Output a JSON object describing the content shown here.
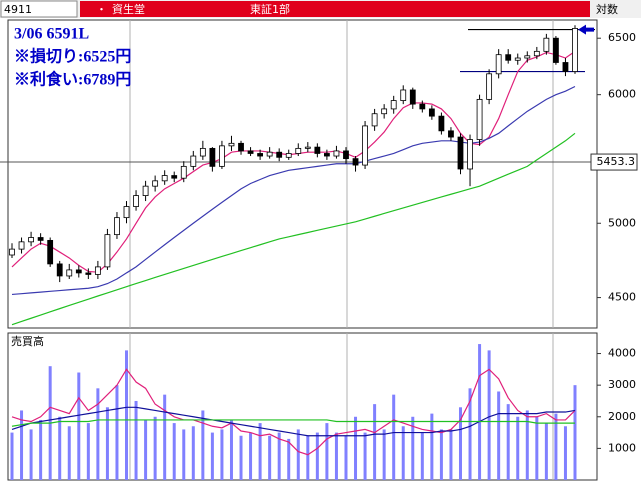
{
  "header": {
    "code": "4911",
    "marker": "・",
    "name": "資生堂",
    "market": "東証1部",
    "scale_label": "対数"
  },
  "chart_data": [
    {
      "type": "candlestick",
      "log": true,
      "ylim": [
        4310,
        6670
      ],
      "yticks": [
        4500,
        5000,
        6000,
        6500
      ],
      "annotations": [
        "3/06 6591L",
        "※損切り:6525円",
        "※利食い:6789円"
      ],
      "current_price": 5453.3,
      "levels": [
        6580,
        6200
      ],
      "level_color": "#000080",
      "open": [
        4780,
        4820,
        4870,
        4900,
        4880,
        4720,
        4640,
        4680,
        4660,
        4650,
        4700,
        4920,
        5040,
        5120,
        5200,
        5270,
        5310,
        5350,
        5330,
        5420,
        5500,
        5560,
        5420,
        5580,
        5600,
        5540,
        5520,
        5500,
        5530,
        5490,
        5520,
        5560,
        5570,
        5520,
        5500,
        5540,
        5480,
        5430,
        5740,
        5840,
        5880,
        5950,
        6040,
        5920,
        5880,
        5820,
        5700,
        5650,
        5400,
        5630,
        5960,
        6180,
        6350,
        6300,
        6320,
        6340,
        6380,
        6500,
        6280,
        6200
      ],
      "high": [
        4860,
        4900,
        4940,
        4930,
        4900,
        4740,
        4720,
        4710,
        4690,
        4740,
        4960,
        5080,
        5160,
        5240,
        5310,
        5350,
        5390,
        5380,
        5460,
        5540,
        5620,
        5570,
        5620,
        5660,
        5620,
        5570,
        5550,
        5570,
        5560,
        5550,
        5600,
        5610,
        5600,
        5550,
        5580,
        5570,
        5500,
        5780,
        5880,
        5920,
        5990,
        6080,
        6060,
        5950,
        5910,
        5850,
        5730,
        5680,
        5670,
        6000,
        6220,
        6400,
        6400,
        6360,
        6380,
        6420,
        6540,
        6520,
        6320,
        6620
      ],
      "low": [
        4760,
        4790,
        4840,
        4850,
        4700,
        4600,
        4620,
        4630,
        4620,
        4620,
        4680,
        4890,
        5000,
        5090,
        5160,
        5230,
        5280,
        5300,
        5300,
        5390,
        5470,
        5380,
        5400,
        5540,
        5510,
        5500,
        5470,
        5480,
        5460,
        5470,
        5500,
        5530,
        5490,
        5470,
        5480,
        5440,
        5380,
        5400,
        5700,
        5800,
        5840,
        5920,
        5880,
        5850,
        5790,
        5670,
        5620,
        5360,
        5270,
        5580,
        5920,
        6140,
        6270,
        6260,
        6280,
        6310,
        6350,
        6260,
        6160,
        6180
      ],
      "close": [
        4820,
        4870,
        4900,
        4880,
        4720,
        4640,
        4680,
        4660,
        4650,
        4700,
        4920,
        5040,
        5120,
        5200,
        5270,
        5310,
        5350,
        5330,
        5420,
        5500,
        5560,
        5420,
        5580,
        5600,
        5540,
        5520,
        5500,
        5530,
        5490,
        5520,
        5560,
        5570,
        5520,
        5500,
        5540,
        5480,
        5430,
        5740,
        5840,
        5880,
        5950,
        6040,
        5920,
        5880,
        5820,
        5700,
        5650,
        5400,
        5630,
        5960,
        6180,
        6350,
        6300,
        6320,
        6340,
        6380,
        6500,
        6280,
        6200,
        6591
      ],
      "overlays": [
        {
          "color": "#e0207a",
          "values": [
            4700,
            4760,
            4820,
            4860,
            4840,
            4800,
            4760,
            4710,
            4670,
            4665,
            4720,
            4800,
            4890,
            5000,
            5110,
            5190,
            5250,
            5290,
            5330,
            5380,
            5430,
            5450,
            5480,
            5530,
            5540,
            5540,
            5540,
            5530,
            5520,
            5510,
            5520,
            5530,
            5530,
            5530,
            5540,
            5520,
            5490,
            5540,
            5610,
            5690,
            5800,
            5890,
            5930,
            5930,
            5920,
            5880,
            5800,
            5680,
            5600,
            5590,
            5650,
            5800,
            6000,
            6200,
            6300,
            6330,
            6370,
            6350,
            6320,
            6380
          ]
        },
        {
          "color": "#3a3ab0",
          "values": [
            4520,
            4525,
            4530,
            4535,
            4540,
            4545,
            4550,
            4555,
            4560,
            4570,
            4590,
            4620,
            4660,
            4700,
            4750,
            4800,
            4850,
            4900,
            4950,
            5000,
            5050,
            5100,
            5150,
            5200,
            5250,
            5290,
            5320,
            5350,
            5370,
            5390,
            5400,
            5410,
            5420,
            5430,
            5440,
            5440,
            5440,
            5460,
            5480,
            5500,
            5520,
            5550,
            5580,
            5600,
            5610,
            5620,
            5620,
            5610,
            5600,
            5610,
            5640,
            5680,
            5740,
            5800,
            5860,
            5910,
            5960,
            6000,
            6030,
            6070
          ]
        },
        {
          "color": "#22c022",
          "values": [
            4330,
            4350,
            4370,
            4390,
            4410,
            4430,
            4450,
            4470,
            4490,
            4510,
            4530,
            4550,
            4570,
            4590,
            4610,
            4630,
            4650,
            4670,
            4690,
            4710,
            4730,
            4750,
            4770,
            4790,
            4810,
            4830,
            4850,
            4870,
            4890,
            4905,
            4920,
            4935,
            4950,
            4965,
            4980,
            4995,
            5010,
            5030,
            5050,
            5070,
            5090,
            5110,
            5130,
            5150,
            5170,
            5190,
            5210,
            5230,
            5250,
            5270,
            5300,
            5330,
            5360,
            5390,
            5420,
            5470,
            5520,
            5570,
            5620,
            5680
          ]
        }
      ]
    },
    {
      "type": "bar",
      "title": "売買高",
      "color": "#8080ff",
      "ylim": [
        0,
        4650
      ],
      "yticks": [
        1000,
        2000,
        3000,
        4000
      ],
      "values": [
        1500,
        2200,
        1600,
        1900,
        3600,
        2000,
        1700,
        3400,
        1800,
        2900,
        2300,
        3000,
        4100,
        2500,
        1900,
        2000,
        2700,
        1800,
        1600,
        1700,
        2200,
        1500,
        1600,
        1900,
        1400,
        1500,
        1800,
        1400,
        1500,
        1300,
        1600,
        1400,
        1500,
        1800,
        1500,
        1400,
        2000,
        1500,
        2400,
        1600,
        2700,
        1700,
        2000,
        1500,
        2100,
        1600,
        1600,
        2300,
        2900,
        4300,
        4100,
        2800,
        2400,
        2000,
        2200,
        2000,
        1800,
        2100,
        1700,
        3000
      ],
      "overlays": [
        {
          "color": "#e0207a",
          "values": [
            2000,
            1900,
            1850,
            2000,
            2300,
            2200,
            2100,
            2600,
            2200,
            2400,
            2700,
            3000,
            3500,
            3100,
            2900,
            2400,
            2200,
            2000,
            1900,
            1900,
            1800,
            1700,
            1650,
            1800,
            1550,
            1500,
            1400,
            1450,
            1300,
            1200,
            900,
            800,
            1000,
            1300,
            1450,
            1500,
            1550,
            1600,
            1500,
            1700,
            1900,
            1800,
            1700,
            1600,
            1550,
            1500,
            1600,
            1900,
            2500,
            3300,
            3500,
            3200,
            2600,
            2200,
            2000,
            2000,
            2100,
            1900,
            1900,
            2200
          ]
        },
        {
          "color": "#10109a",
          "values": [
            1600,
            1700,
            1800,
            1850,
            1900,
            1950,
            2000,
            2050,
            2100,
            2150,
            2200,
            2250,
            2300,
            2300,
            2250,
            2200,
            2150,
            2100,
            2050,
            2000,
            1950,
            1900,
            1850,
            1800,
            1750,
            1700,
            1650,
            1600,
            1550,
            1500,
            1450,
            1400,
            1400,
            1400,
            1400,
            1400,
            1400,
            1400,
            1450,
            1450,
            1500,
            1500,
            1500,
            1500,
            1500,
            1550,
            1550,
            1600,
            1700,
            1850,
            2000,
            2100,
            2100,
            2100,
            2100,
            2100,
            2150,
            2150,
            2150,
            2200
          ]
        },
        {
          "color": "#22c022",
          "values": [
            1700,
            1750,
            1800,
            1800,
            1800,
            1850,
            1850,
            1850,
            1850,
            1900,
            1900,
            1900,
            1900,
            1900,
            1900,
            1900,
            1900,
            1900,
            1900,
            1900,
            1900,
            1900,
            1900,
            1900,
            1900,
            1900,
            1900,
            1900,
            1900,
            1900,
            1900,
            1900,
            1900,
            1900,
            1850,
            1850,
            1850,
            1850,
            1850,
            1850,
            1850,
            1850,
            1850,
            1850,
            1850,
            1850,
            1850,
            1850,
            1850,
            1850,
            1850,
            1850,
            1850,
            1850,
            1850,
            1800,
            1800,
            1800,
            1800,
            1800
          ]
        }
      ]
    }
  ]
}
